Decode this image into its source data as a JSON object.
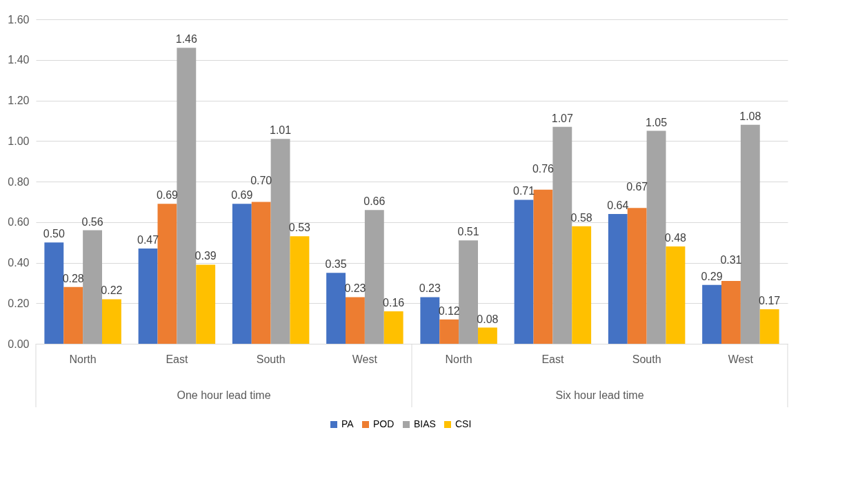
{
  "chart_data": {
    "type": "bar",
    "categories": [
      "North",
      "East",
      "South",
      "West",
      "North",
      "East",
      "South",
      "West"
    ],
    "annotations": [
      "One hour lead time",
      "Six hour lead time"
    ],
    "series": [
      {
        "name": "PA",
        "color": "#4472c4",
        "values": [
          0.5,
          0.47,
          0.69,
          0.35,
          0.23,
          0.71,
          0.64,
          0.29
        ],
        "value_labels": [
          "0.50",
          "0.47",
          "0.69",
          "0.35",
          "0.23",
          "0.71",
          "0.64",
          "0.29"
        ]
      },
      {
        "name": "POD",
        "color": "#ed7d31",
        "values": [
          0.28,
          0.69,
          0.7,
          0.23,
          0.12,
          0.76,
          0.67,
          0.31
        ],
        "value_labels": [
          "0.28",
          "0.69",
          "0.70",
          "0.23",
          "0.12",
          "0.76",
          "0.67",
          "0.31"
        ]
      },
      {
        "name": "BIAS",
        "color": "#a5a5a5",
        "values": [
          0.56,
          1.46,
          1.01,
          0.66,
          0.51,
          1.07,
          1.05,
          1.08
        ],
        "value_labels": [
          "0.56",
          "1.46",
          "1.01",
          "0.66",
          "0.51",
          "1.07",
          "1.05",
          "1.08"
        ]
      },
      {
        "name": "CSI",
        "color": "#ffc000",
        "values": [
          0.22,
          0.39,
          0.53,
          0.16,
          0.08,
          0.58,
          0.48,
          0.17
        ],
        "value_labels": [
          "0.22",
          "0.39",
          "0.53",
          "0.16",
          "0.08",
          "0.58",
          "0.48",
          "0.17"
        ]
      }
    ],
    "ylim": [
      0,
      1.6
    ],
    "yticks": [
      {
        "value": 0,
        "label": "0.00"
      },
      {
        "value": 0.2,
        "label": "0.20"
      },
      {
        "value": 0.4,
        "label": "0.40"
      },
      {
        "value": 0.6,
        "label": "0.60"
      },
      {
        "value": 0.8,
        "label": "0.80"
      },
      {
        "value": 1,
        "label": "1.00"
      },
      {
        "value": 1.2,
        "label": "1.20"
      },
      {
        "value": 1.4,
        "label": "1.40"
      },
      {
        "value": 1.6,
        "label": "1.60"
      }
    ],
    "grid": "y",
    "legend": "bottom"
  }
}
